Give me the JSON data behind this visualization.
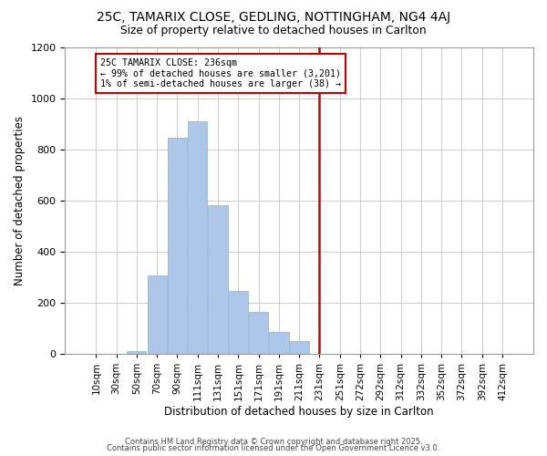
{
  "title": "25C, TAMARIX CLOSE, GEDLING, NOTTINGHAM, NG4 4AJ",
  "subtitle": "Size of property relative to detached houses in Carlton",
  "xlabel": "Distribution of detached houses by size in Carlton",
  "ylabel": "Number of detached properties",
  "bar_color": "#aec6e8",
  "highlight_color": "#cdd9ee",
  "bar_edge_color": "#8aafd0",
  "grid_color": "#cccccc",
  "vline_color": "#cc0000",
  "vline_x_idx": 11,
  "annotation_text": "25C TAMARIX CLOSE: 236sqm\n← 99% of detached houses are smaller (3,201)\n1% of semi-detached houses are larger (38) →",
  "footer1": "Contains HM Land Registry data © Crown copyright and database right 2025.",
  "footer2": "Contains public sector information licensed under the Open Government Licence v3.0.",
  "bin_labels": [
    "10sqm",
    "30sqm",
    "50sqm",
    "70sqm",
    "90sqm",
    "111sqm",
    "131sqm",
    "151sqm",
    "171sqm",
    "191sqm",
    "211sqm",
    "231sqm",
    "251sqm",
    "272sqm",
    "292sqm",
    "312sqm",
    "332sqm",
    "352sqm",
    "372sqm",
    "392sqm",
    "412sqm"
  ],
  "counts": [
    0,
    0,
    10,
    305,
    845,
    910,
    580,
    245,
    165,
    85,
    50,
    0,
    0,
    0,
    0,
    0,
    0,
    0,
    0,
    0,
    0
  ],
  "ylim": [
    0,
    1200
  ],
  "yticks": [
    0,
    200,
    400,
    600,
    800,
    1000,
    1200
  ]
}
